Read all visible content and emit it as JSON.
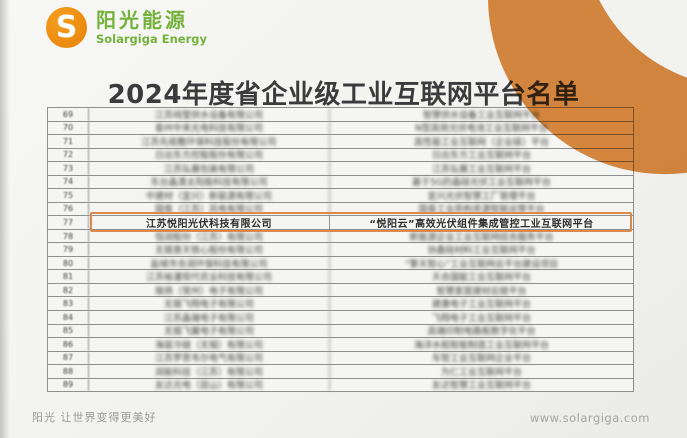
{
  "brand": {
    "logo_letter": "S",
    "name_cn": "阳光能源",
    "name_en": "Solargiga Energy"
  },
  "title": "2024年度省企业级工业互联网平台名单",
  "table": {
    "highlighted_row_number": "77",
    "rows": [
      {
        "no": "69",
        "company": "江苏纯莹供水设备有限公司",
        "platform": "智慧供水设备工业互联网平台",
        "blurred": true
      },
      {
        "no": "70",
        "company": "泰州中来光电科技有限公司",
        "platform": "N型高效光伏电池工业互联网平台",
        "blurred": true
      },
      {
        "no": "71",
        "company": "江苏先缆敷环保科技股份有限公司",
        "platform": "高性能工业互联网（企业级）平台",
        "blurred": true
      },
      {
        "no": "72",
        "company": "日出东方控股股份有限公司",
        "platform": "日出东方工业互联网平台",
        "blurred": true
      },
      {
        "no": "73",
        "company": "江苏弘展包装有限公司",
        "platform": "江苏弘展工业互联网平台",
        "blurred": true
      },
      {
        "no": "74",
        "company": "东台晶澳太阳能科技有限公司",
        "platform": "基于5G的晶硅光伏工业互联网平台",
        "blurred": true
      },
      {
        "no": "75",
        "company": "中建材（宜兴）新能源有限公司",
        "platform": "宜兴光伏智慧工厂管理平台",
        "blurred": true
      },
      {
        "no": "76",
        "company": "国泰（江苏）风电有限公司",
        "platform": "国泰工业异构资源智能运营平台",
        "blurred": true
      },
      {
        "no": "77",
        "company": "江苏悦阳光伏科技有限公司",
        "platform": "“悦阳云”高效光伏组件集成管控工业互联网平台",
        "blurred": false,
        "highlight": true
      },
      {
        "no": "78",
        "company": "恒润股份（江苏）有限公司",
        "platform": "新能源企业工业互联网综合服务平台",
        "blurred": true
      },
      {
        "no": "79",
        "company": "无锡普天铁心股份有限公司",
        "platform": "协鑫硅材料工业互联网平台",
        "blurred": true
      },
      {
        "no": "80",
        "company": "盐城市合润环保科技有限公司",
        "platform": "“擎天智心”工业互联网云平台建设项目",
        "blurred": true
      },
      {
        "no": "81",
        "company": "江苏裕灌现代农业科技有限公司",
        "platform": "天合国能工业互联网平台",
        "blurred": true
      },
      {
        "no": "82",
        "company": "璨扬（常州）电子有限公司",
        "platform": "智慧家居建材云链平台",
        "blurred": true
      },
      {
        "no": "83",
        "company": "无锡飞翔电子有限公司",
        "platform": "建康电子工业互联网平台",
        "blurred": true
      },
      {
        "no": "84",
        "company": "江苏晶端电子有限公司",
        "platform": "飞翔电子工业互联网平台",
        "blurred": true
      },
      {
        "no": "85",
        "company": "无锡飞翼电子有限公司",
        "platform": "高端印制电路板数字化平台",
        "blurred": true
      },
      {
        "no": "86",
        "company": "海容冷链（无锡）有限公司",
        "platform": "海洋水稻智能制造工业互联网平台",
        "blurred": true
      },
      {
        "no": "87",
        "company": "江苏罗思韦尔电气有限公司",
        "platform": "车智工业互联网企业平台",
        "blurred": true
      },
      {
        "no": "88",
        "company": "润能科技（江苏）有限公司",
        "platform": "为仁工业互联网平台",
        "blurred": true
      },
      {
        "no": "89",
        "company": "友达光电（昆山）有限公司",
        "platform": "友达智慧工业互联网平台",
        "blurred": true
      }
    ]
  },
  "footer": {
    "slogan": "阳光 让世界变得更美好",
    "website": "www.solargiga.com"
  },
  "colors": {
    "brand_orange": "#E8891B",
    "brand_green": "#74B23C",
    "corner_blob": "#DD8C42",
    "highlight_border": "#DB8A4C",
    "table_border": "#8f8f8f"
  }
}
